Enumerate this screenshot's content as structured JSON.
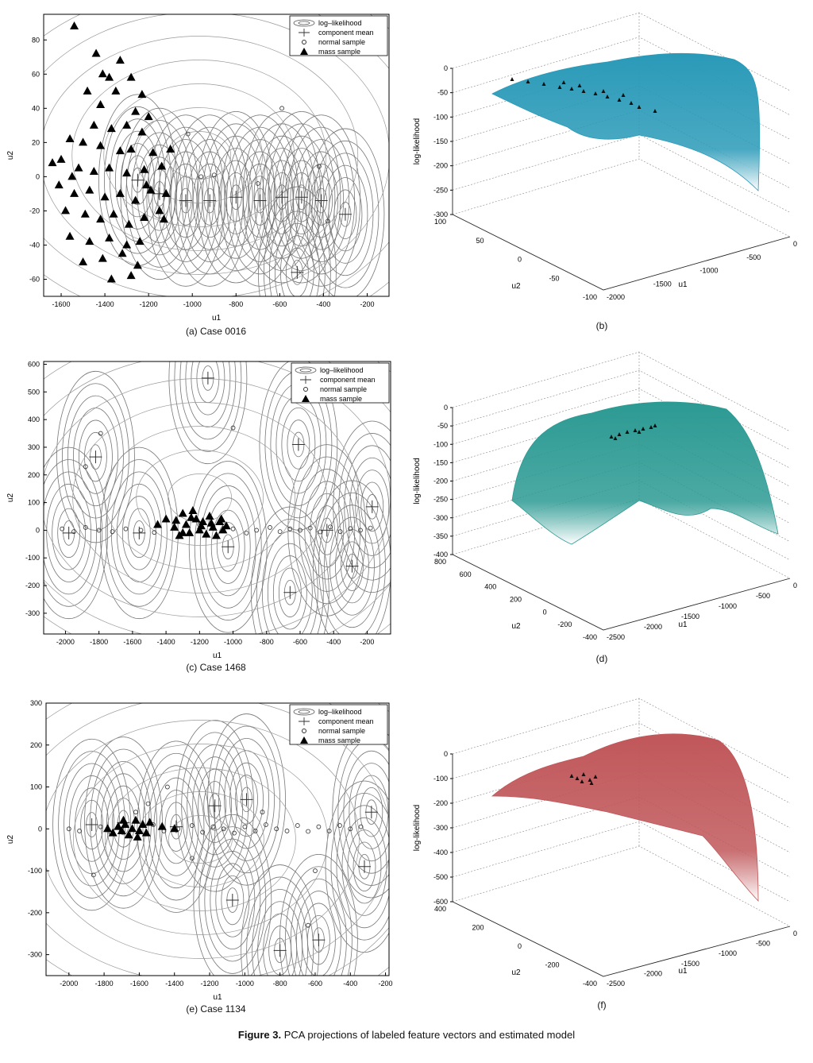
{
  "figure": {
    "label": "Figure 3.",
    "text": "PCA projections of labeled feature vectors and estimated model"
  },
  "legend": {
    "items": [
      "log–likelihood",
      "component mean",
      "normal sample",
      "mass sample"
    ]
  },
  "colors": {
    "b": "#2a9ab8",
    "d": "#2c9a93",
    "f": "#c0575a"
  },
  "chart_data": [
    {
      "id": "a",
      "type": "scatter",
      "caption": "(a) Case 0016",
      "xlabel": "u1",
      "ylabel": "u2",
      "xlim": [
        -1680,
        -100
      ],
      "ylim": [
        -70,
        95
      ],
      "xticks": [
        -1600,
        -1400,
        -1200,
        -1000,
        -800,
        -600,
        -400,
        -200
      ],
      "yticks": [
        -60,
        -40,
        -20,
        0,
        20,
        40,
        60,
        80
      ],
      "component_means": [
        [
          -1250,
          -2
        ],
        [
          -1150,
          -10
        ],
        [
          -1030,
          -14
        ],
        [
          -920,
          -14
        ],
        [
          -800,
          -12
        ],
        [
          -690,
          -14
        ],
        [
          -590,
          -12
        ],
        [
          -500,
          -12
        ],
        [
          -410,
          -14
        ],
        [
          -300,
          -22
        ],
        [
          -520,
          -56
        ]
      ],
      "normal_samples": [
        [
          -590,
          40
        ],
        [
          -700,
          -4
        ],
        [
          -380,
          -26
        ],
        [
          -960,
          0
        ],
        [
          -1020,
          25
        ],
        [
          -900,
          1
        ],
        [
          -420,
          6
        ]
      ],
      "mass_samples": [
        [
          -1540,
          88
        ],
        [
          -1440,
          72
        ],
        [
          -1330,
          68
        ],
        [
          -1280,
          58
        ],
        [
          -1380,
          58
        ],
        [
          -1480,
          50
        ],
        [
          -1350,
          50
        ],
        [
          -1230,
          48
        ],
        [
          -1420,
          42
        ],
        [
          -1260,
          38
        ],
        [
          -1200,
          35
        ],
        [
          -1300,
          30
        ],
        [
          -1450,
          30
        ],
        [
          -1370,
          28
        ],
        [
          -1230,
          26
        ],
        [
          -1560,
          22
        ],
        [
          -1500,
          20
        ],
        [
          -1420,
          18
        ],
        [
          -1330,
          15
        ],
        [
          -1280,
          16
        ],
        [
          -1180,
          14
        ],
        [
          -1100,
          16
        ],
        [
          -1600,
          10
        ],
        [
          -1640,
          8
        ],
        [
          -1520,
          5
        ],
        [
          -1450,
          3
        ],
        [
          -1380,
          5
        ],
        [
          -1300,
          2
        ],
        [
          -1220,
          4
        ],
        [
          -1140,
          6
        ],
        [
          -1610,
          -5
        ],
        [
          -1540,
          -10
        ],
        [
          -1470,
          -8
        ],
        [
          -1400,
          -12
        ],
        [
          -1330,
          -10
        ],
        [
          -1260,
          -14
        ],
        [
          -1190,
          -8
        ],
        [
          -1120,
          -10
        ],
        [
          -1580,
          -20
        ],
        [
          -1490,
          -22
        ],
        [
          -1420,
          -25
        ],
        [
          -1360,
          -22
        ],
        [
          -1290,
          -28
        ],
        [
          -1220,
          -24
        ],
        [
          -1150,
          -20
        ],
        [
          -1560,
          -35
        ],
        [
          -1470,
          -38
        ],
        [
          -1380,
          -36
        ],
        [
          -1300,
          -40
        ],
        [
          -1240,
          -38
        ],
        [
          -1500,
          -50
        ],
        [
          -1410,
          -48
        ],
        [
          -1320,
          -45
        ],
        [
          -1250,
          -52
        ],
        [
          -1370,
          -60
        ],
        [
          -1280,
          -58
        ],
        [
          -1130,
          -25
        ],
        [
          -1550,
          0
        ],
        [
          -1210,
          -5
        ],
        [
          -1410,
          60
        ]
      ]
    },
    {
      "id": "b",
      "type": "surface",
      "caption": "(b)",
      "xlabel": "u1",
      "ylabel": "u2",
      "zlabel": "log-likelihood",
      "xticks": [
        -2000,
        -1500,
        -1000,
        -500,
        0
      ],
      "yticks": [
        -100,
        -50,
        0,
        50,
        100
      ],
      "zticks": [
        0,
        -50,
        -100,
        -150,
        -200,
        -250,
        -300
      ]
    },
    {
      "id": "c",
      "type": "scatter",
      "caption": "(c) Case 1468",
      "xlabel": "u1",
      "ylabel": "u2",
      "xlim": [
        -2130,
        -60
      ],
      "ylim": [
        -375,
        610
      ],
      "xticks": [
        -2000,
        -1800,
        -1600,
        -1400,
        -1200,
        -1000,
        -800,
        -600,
        -400,
        -200
      ],
      "yticks": [
        -300,
        -200,
        -100,
        0,
        100,
        200,
        300,
        400,
        500,
        600
      ],
      "component_means": [
        [
          -1150,
          550
        ],
        [
          -1820,
          265
        ],
        [
          -610,
          310
        ],
        [
          -1980,
          -10
        ],
        [
          -1560,
          -10
        ],
        [
          -1030,
          -60
        ],
        [
          -660,
          -225
        ],
        [
          -290,
          -130
        ],
        [
          -170,
          85
        ],
        [
          -440,
          0
        ]
      ],
      "normal_samples": [
        [
          -2020,
          5
        ],
        [
          -1950,
          -5
        ],
        [
          -1880,
          10
        ],
        [
          -1800,
          0
        ],
        [
          -1720,
          -5
        ],
        [
          -1640,
          5
        ],
        [
          -1550,
          0
        ],
        [
          -1470,
          -8
        ],
        [
          -1000,
          5
        ],
        [
          -920,
          -10
        ],
        [
          -860,
          0
        ],
        [
          -780,
          10
        ],
        [
          -720,
          -5
        ],
        [
          -660,
          5
        ],
        [
          -600,
          0
        ],
        [
          -540,
          8
        ],
        [
          -480,
          -6
        ],
        [
          -420,
          12
        ],
        [
          -360,
          -5
        ],
        [
          -300,
          6
        ],
        [
          -240,
          0
        ],
        [
          -180,
          8
        ],
        [
          -1790,
          350
        ],
        [
          -1880,
          230
        ],
        [
          -1000,
          370
        ],
        [
          -1200,
          20
        ]
      ],
      "mass_samples": [
        [
          -1400,
          40
        ],
        [
          -1350,
          10
        ],
        [
          -1320,
          -20
        ],
        [
          -1300,
          60
        ],
        [
          -1280,
          20
        ],
        [
          -1260,
          -10
        ],
        [
          -1240,
          70
        ],
        [
          -1220,
          40
        ],
        [
          -1200,
          0
        ],
        [
          -1180,
          30
        ],
        [
          -1160,
          -15
        ],
        [
          -1140,
          50
        ],
        [
          -1120,
          10
        ],
        [
          -1100,
          -20
        ],
        [
          -1080,
          30
        ],
        [
          -1060,
          0
        ],
        [
          -1340,
          35
        ],
        [
          -1250,
          45
        ],
        [
          -1190,
          15
        ],
        [
          -1130,
          25
        ],
        [
          -1070,
          40
        ],
        [
          -1300,
          -10
        ],
        [
          -1450,
          20
        ],
        [
          -1040,
          15
        ]
      ]
    },
    {
      "id": "d",
      "type": "surface",
      "caption": "(d)",
      "xlabel": "u1",
      "ylabel": "u2",
      "zlabel": "log-likelihood",
      "xticks": [
        -2500,
        -2000,
        -1500,
        -1000,
        -500,
        0
      ],
      "yticks": [
        -400,
        -200,
        0,
        200,
        400,
        600,
        800
      ],
      "zticks": [
        0,
        -50,
        -100,
        -150,
        -200,
        -250,
        -300,
        -350,
        -400
      ]
    },
    {
      "id": "e",
      "type": "scatter",
      "caption": "(e) Case 1134",
      "xlabel": "u1",
      "ylabel": "u2",
      "xlim": [
        -2130,
        -180
      ],
      "ylim": [
        -350,
        300
      ],
      "xticks": [
        -2000,
        -1800,
        -1600,
        -1400,
        -1200,
        -1000,
        -800,
        -600,
        -400,
        -200
      ],
      "yticks": [
        -300,
        -200,
        -100,
        0,
        100,
        200,
        300
      ],
      "component_means": [
        [
          -1870,
          10
        ],
        [
          -1690,
          15
        ],
        [
          -1170,
          55
        ],
        [
          -990,
          70
        ],
        [
          -1070,
          -170
        ],
        [
          -800,
          -290
        ],
        [
          -580,
          -265
        ],
        [
          -320,
          -90
        ],
        [
          -280,
          40
        ],
        [
          -1390,
          5
        ]
      ],
      "normal_samples": [
        [
          -2000,
          0
        ],
        [
          -1940,
          -5
        ],
        [
          -1820,
          5
        ],
        [
          -1760,
          -10
        ],
        [
          -1520,
          10
        ],
        [
          -1460,
          -5
        ],
        [
          -1380,
          0
        ],
        [
          -1300,
          8
        ],
        [
          -1240,
          -8
        ],
        [
          -1180,
          5
        ],
        [
          -1120,
          0
        ],
        [
          -1060,
          -10
        ],
        [
          -1000,
          5
        ],
        [
          -940,
          -5
        ],
        [
          -880,
          10
        ],
        [
          -820,
          0
        ],
        [
          -760,
          -5
        ],
        [
          -700,
          8
        ],
        [
          -640,
          -6
        ],
        [
          -580,
          5
        ],
        [
          -520,
          -5
        ],
        [
          -460,
          8
        ],
        [
          -400,
          0
        ],
        [
          -340,
          5
        ],
        [
          -1860,
          -110
        ],
        [
          -1620,
          40
        ],
        [
          -1550,
          60
        ],
        [
          -1440,
          100
        ],
        [
          -900,
          40
        ],
        [
          -600,
          -100
        ],
        [
          -640,
          -230
        ],
        [
          -1300,
          -70
        ]
      ],
      "mass_samples": [
        [
          -1780,
          0
        ],
        [
          -1750,
          -10
        ],
        [
          -1720,
          5
        ],
        [
          -1700,
          -5
        ],
        [
          -1680,
          10
        ],
        [
          -1660,
          -15
        ],
        [
          -1640,
          0
        ],
        [
          -1620,
          20
        ],
        [
          -1600,
          -5
        ],
        [
          -1580,
          10
        ],
        [
          -1560,
          -10
        ],
        [
          -1540,
          15
        ],
        [
          -1690,
          20
        ],
        [
          -1610,
          -20
        ],
        [
          -1470,
          5
        ],
        [
          -1400,
          0
        ]
      ]
    },
    {
      "id": "f",
      "type": "surface",
      "caption": "(f)",
      "xlabel": "u1",
      "ylabel": "u2",
      "zlabel": "log-likelihood",
      "xticks": [
        -2500,
        -2000,
        -1500,
        -1000,
        -500,
        0
      ],
      "yticks": [
        -400,
        -200,
        0,
        200,
        400
      ],
      "zticks": [
        0,
        -100,
        -200,
        -300,
        -400,
        -500,
        -600
      ]
    }
  ]
}
